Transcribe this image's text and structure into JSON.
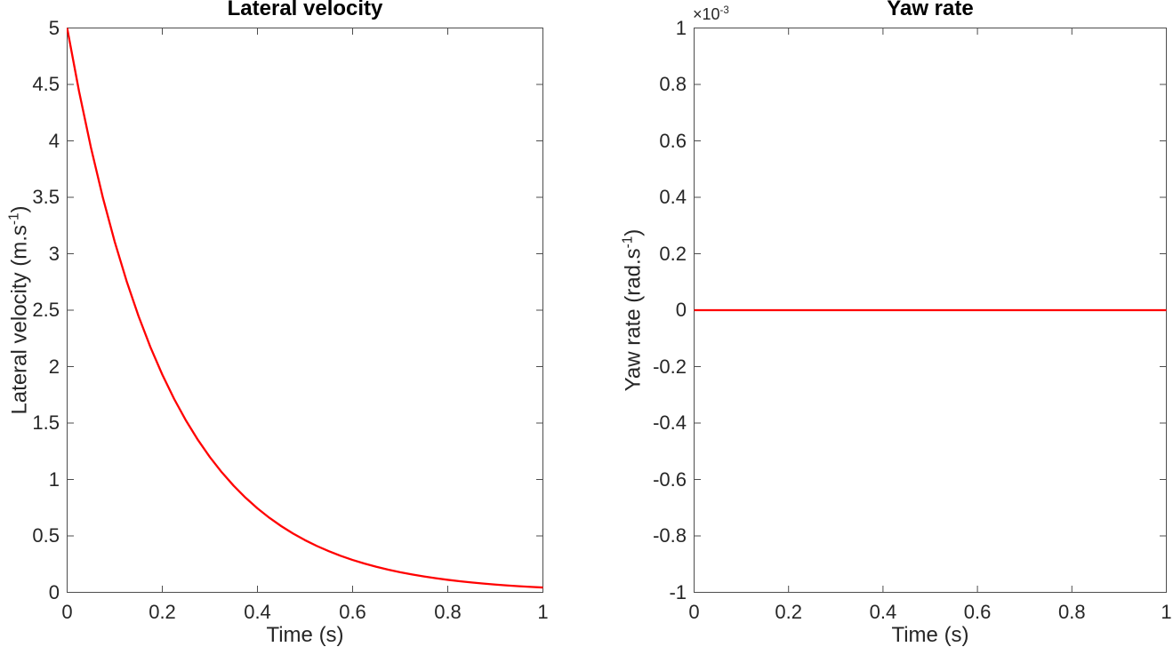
{
  "style": {
    "background": "#ffffff",
    "axis_color": "#4d4d4d",
    "text_color": "#262626",
    "title_color": "#000000"
  },
  "chart_data": [
    {
      "type": "line",
      "title": "Lateral velocity",
      "xlabel": "Time (s)",
      "ylabel": "Lateral velocity (m.s^-1)",
      "ylabel_main": "Lateral velocity (m.s",
      "ylabel_sup": "-1",
      "ylabel_end": ")",
      "xlim": [
        0,
        1
      ],
      "ylim": [
        0,
        5
      ],
      "xticks": [
        0,
        0.2,
        0.4,
        0.6,
        0.8,
        1
      ],
      "xtick_labels": [
        "0",
        "0.2",
        "0.4",
        "0.6",
        "0.8",
        "1"
      ],
      "yticks": [
        0,
        0.5,
        1,
        1.5,
        2,
        2.5,
        3,
        3.5,
        4,
        4.5,
        5
      ],
      "ytick_labels": [
        "0",
        "0.5",
        "1",
        "1.5",
        "2",
        "2.5",
        "3",
        "3.5",
        "4",
        "4.5",
        "5"
      ],
      "grid": false,
      "legend": null,
      "line_color": "#ff0000",
      "line_width": 2.3,
      "series": [
        {
          "name": "lateral velocity",
          "x": [
            0,
            0.025,
            0.05,
            0.075,
            0.1,
            0.125,
            0.15,
            0.175,
            0.2,
            0.225,
            0.25,
            0.275,
            0.3,
            0.325,
            0.35,
            0.375,
            0.4,
            0.425,
            0.45,
            0.475,
            0.5,
            0.525,
            0.55,
            0.575,
            0.6,
            0.625,
            0.65,
            0.675,
            0.7,
            0.725,
            0.75,
            0.775,
            0.8,
            0.825,
            0.85,
            0.875,
            0.9,
            0.925,
            0.95,
            0.975,
            1.0
          ],
          "y": [
            5.0,
            4.4389,
            3.9407,
            3.4984,
            3.1058,
            2.7572,
            2.4477,
            2.173,
            1.9291,
            1.7126,
            1.5204,
            1.3497,
            1.1982,
            1.0637,
            0.9443,
            0.8383,
            0.7442,
            0.6607,
            0.5866,
            0.5207,
            0.4623,
            0.4104,
            0.3643,
            0.3234,
            0.2871,
            0.2549,
            0.2263,
            0.2009,
            0.1783,
            0.1583,
            0.1405,
            0.1248,
            0.1108,
            0.0983,
            0.0873,
            0.0775,
            0.0688,
            0.0611,
            0.0542,
            0.0481,
            0.0427
          ]
        }
      ]
    },
    {
      "type": "line",
      "title": "Yaw rate",
      "xlabel": "Time (s)",
      "ylabel": "Yaw rate (rad.s^-1)",
      "ylabel_main": "Yaw rate (rad.s",
      "ylabel_sup": "-1",
      "ylabel_end": ")",
      "offset_label_main": "×10",
      "offset_label_sup": "-3",
      "xlim": [
        0,
        1
      ],
      "ylim": [
        -0.001,
        0.001
      ],
      "xticks": [
        0,
        0.2,
        0.4,
        0.6,
        0.8,
        1
      ],
      "xtick_labels": [
        "0",
        "0.2",
        "0.4",
        "0.6",
        "0.8",
        "1"
      ],
      "yticks": [
        -0.001,
        -0.0008,
        -0.0006,
        -0.0004,
        -0.0002,
        0,
        0.0002,
        0.0004,
        0.0006,
        0.0008,
        0.001
      ],
      "ytick_labels": [
        "-1",
        "-0.8",
        "-0.6",
        "-0.4",
        "-0.2",
        "0",
        "0.2",
        "0.4",
        "0.6",
        "0.8",
        "1"
      ],
      "grid": false,
      "legend": null,
      "line_color": "#ff0000",
      "line_width": 2.3,
      "series": [
        {
          "name": "yaw rate",
          "x": [
            0,
            1
          ],
          "y": [
            0,
            0
          ]
        }
      ]
    }
  ]
}
